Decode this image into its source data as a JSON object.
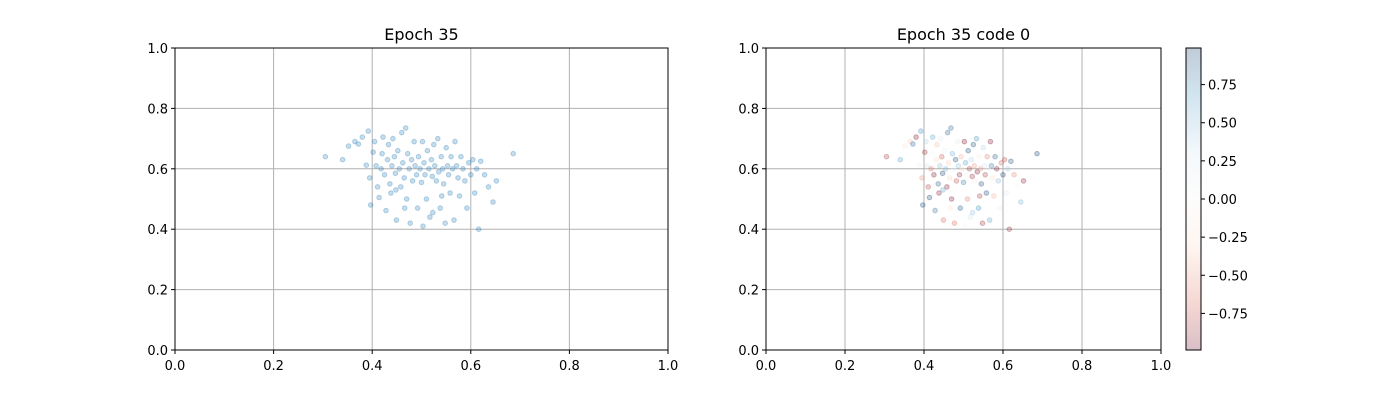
{
  "colors": {
    "point": "#1f77b4",
    "cmap": "RdBu"
  },
  "chart_data": [
    {
      "type": "scatter",
      "title": "Epoch 35",
      "xlabel": "",
      "ylabel": "",
      "xlim": [
        0,
        1
      ],
      "ylim": [
        0,
        1
      ],
      "xticks": [
        "0.0",
        "0.2",
        "0.4",
        "0.6",
        "0.8",
        "1.0"
      ],
      "yticks": [
        "0.0",
        "0.2",
        "0.4",
        "0.6",
        "0.8",
        "1.0"
      ],
      "grid": true,
      "alpha": 0.25,
      "points": [
        [
          0.305,
          0.64
        ],
        [
          0.34,
          0.63
        ],
        [
          0.352,
          0.675
        ],
        [
          0.365,
          0.69
        ],
        [
          0.372,
          0.682
        ],
        [
          0.38,
          0.705
        ],
        [
          0.392,
          0.725
        ],
        [
          0.388,
          0.612
        ],
        [
          0.395,
          0.57
        ],
        [
          0.397,
          0.48
        ],
        [
          0.402,
          0.655
        ],
        [
          0.405,
          0.69
        ],
        [
          0.408,
          0.61
        ],
        [
          0.411,
          0.54
        ],
        [
          0.414,
          0.505
        ],
        [
          0.418,
          0.6
        ],
        [
          0.42,
          0.65
        ],
        [
          0.422,
          0.705
        ],
        [
          0.425,
          0.58
        ],
        [
          0.428,
          0.462
        ],
        [
          0.431,
          0.63
        ],
        [
          0.433,
          0.68
        ],
        [
          0.436,
          0.55
        ],
        [
          0.438,
          0.52
        ],
        [
          0.44,
          0.61
        ],
        [
          0.442,
          0.7
        ],
        [
          0.445,
          0.64
        ],
        [
          0.447,
          0.585
        ],
        [
          0.449,
          0.43
        ],
        [
          0.452,
          0.66
        ],
        [
          0.455,
          0.6
        ],
        [
          0.458,
          0.54
        ],
        [
          0.46,
          0.72
        ],
        [
          0.462,
          0.62
        ],
        [
          0.465,
          0.57
        ],
        [
          0.468,
          0.735
        ],
        [
          0.47,
          0.5
        ],
        [
          0.472,
          0.65
        ],
        [
          0.475,
          0.6
        ],
        [
          0.477,
          0.42
        ],
        [
          0.48,
          0.63
        ],
        [
          0.482,
          0.56
        ],
        [
          0.485,
          0.69
        ],
        [
          0.487,
          0.61
        ],
        [
          0.49,
          0.58
        ],
        [
          0.492,
          0.47
        ],
        [
          0.494,
          0.64
        ],
        [
          0.497,
          0.6
        ],
        [
          0.5,
          0.555
        ],
        [
          0.502,
          0.69
        ],
        [
          0.505,
          0.62
        ],
        [
          0.507,
          0.58
        ],
        [
          0.51,
          0.5
        ],
        [
          0.512,
          0.66
        ],
        [
          0.515,
          0.6
        ],
        [
          0.517,
          0.44
        ],
        [
          0.52,
          0.63
        ],
        [
          0.522,
          0.575
        ],
        [
          0.525,
          0.68
        ],
        [
          0.527,
          0.61
        ],
        [
          0.53,
          0.56
        ],
        [
          0.533,
          0.7
        ],
        [
          0.535,
          0.59
        ],
        [
          0.538,
          0.47
        ],
        [
          0.54,
          0.64
        ],
        [
          0.543,
          0.6
        ],
        [
          0.545,
          0.55
        ],
        [
          0.548,
          0.42
        ],
        [
          0.55,
          0.67
        ],
        [
          0.553,
          0.61
        ],
        [
          0.555,
          0.58
        ],
        [
          0.558,
          0.52
        ],
        [
          0.56,
          0.64
        ],
        [
          0.563,
          0.6
        ],
        [
          0.566,
          0.43
        ],
        [
          0.568,
          0.69
        ],
        [
          0.571,
          0.61
        ],
        [
          0.574,
          0.57
        ],
        [
          0.577,
          0.51
        ],
        [
          0.58,
          0.64
        ],
        [
          0.584,
          0.6
        ],
        [
          0.588,
          0.56
        ],
        [
          0.592,
          0.47
        ],
        [
          0.596,
          0.62
        ],
        [
          0.6,
          0.58
        ],
        [
          0.604,
          0.63
        ],
        [
          0.608,
          0.52
        ],
        [
          0.612,
          0.6
        ],
        [
          0.616,
          0.4
        ],
        [
          0.62,
          0.625
        ],
        [
          0.628,
          0.58
        ],
        [
          0.636,
          0.54
        ],
        [
          0.645,
          0.49
        ],
        [
          0.652,
          0.56
        ],
        [
          0.686,
          0.65
        ],
        [
          0.448,
          0.53
        ],
        [
          0.466,
          0.47
        ],
        [
          0.503,
          0.41
        ],
        [
          0.523,
          0.455
        ],
        [
          0.541,
          0.51
        ]
      ]
    },
    {
      "type": "scatter",
      "title": "Epoch 35 code 0",
      "xlabel": "",
      "ylabel": "",
      "xlim": [
        0,
        1
      ],
      "ylim": [
        0,
        1
      ],
      "xticks": [
        "0.0",
        "0.2",
        "0.4",
        "0.6",
        "0.8",
        "1.0"
      ],
      "yticks": [
        "0.0",
        "0.2",
        "0.4",
        "0.6",
        "0.8",
        "1.0"
      ],
      "grid": true,
      "alpha": 0.25,
      "colormap": "RdBu",
      "colorbar": {
        "range": [
          -0.99,
          0.99
        ],
        "ticks": [
          -0.75,
          -0.5,
          -0.25,
          0,
          0.25,
          0.5,
          0.75
        ],
        "labels": [
          "−0.75",
          "−0.50",
          "−0.25",
          "0.00",
          "0.25",
          "0.50",
          "0.75"
        ]
      }
    }
  ]
}
